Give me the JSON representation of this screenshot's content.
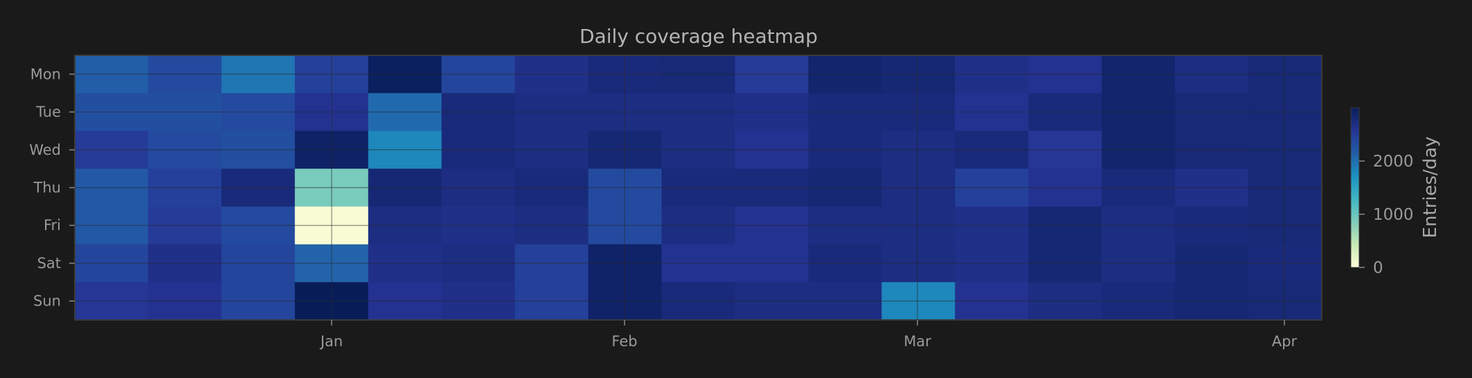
{
  "chart_data": {
    "type": "heatmap",
    "title": "Daily coverage heatmap",
    "rows": [
      "Mon",
      "Tue",
      "Wed",
      "Thu",
      "Fri",
      "Sat",
      "Sun"
    ],
    "x_ticks": [
      "Jan",
      "Feb",
      "Mar",
      "Apr"
    ],
    "colorbar": {
      "label": "Entries/day",
      "ticks": [
        0,
        1000,
        2000
      ],
      "range": [
        0,
        3000
      ],
      "colormap": [
        "#ffffd9",
        "#c7e9b4",
        "#7fcdbb",
        "#41b6c4",
        "#1d91c0",
        "#225ea8",
        "#253494",
        "#081d58"
      ]
    },
    "values": [
      [
        2150,
        2350,
        1950,
        2450,
        2950,
        2400,
        2650,
        2750,
        2780,
        2500,
        2850,
        2800,
        2650,
        2600,
        2850,
        2700,
        2780
      ],
      [
        2300,
        2300,
        2350,
        2600,
        2050,
        2750,
        2700,
        2700,
        2700,
        2650,
        2750,
        2750,
        2600,
        2750,
        2850,
        2770,
        2780
      ],
      [
        2500,
        2350,
        2300,
        2900,
        1800,
        2750,
        2700,
        2800,
        2700,
        2600,
        2750,
        2700,
        2750,
        2550,
        2850,
        2770,
        2780
      ],
      [
        2200,
        2450,
        2750,
        900,
        2800,
        2700,
        2750,
        2350,
        2750,
        2750,
        2800,
        2700,
        2450,
        2600,
        2750,
        2650,
        2780
      ],
      [
        2200,
        2500,
        2350,
        50,
        2700,
        2650,
        2700,
        2350,
        2700,
        2600,
        2700,
        2700,
        2650,
        2800,
        2700,
        2750,
        2780
      ],
      [
        2400,
        2650,
        2400,
        2100,
        2650,
        2700,
        2450,
        2880,
        2600,
        2600,
        2750,
        2700,
        2650,
        2800,
        2700,
        2800,
        2750
      ],
      [
        2550,
        2600,
        2400,
        3000,
        2600,
        2650,
        2450,
        2880,
        2750,
        2700,
        2700,
        1800,
        2600,
        2700,
        2750,
        2800,
        2780
      ]
    ]
  }
}
